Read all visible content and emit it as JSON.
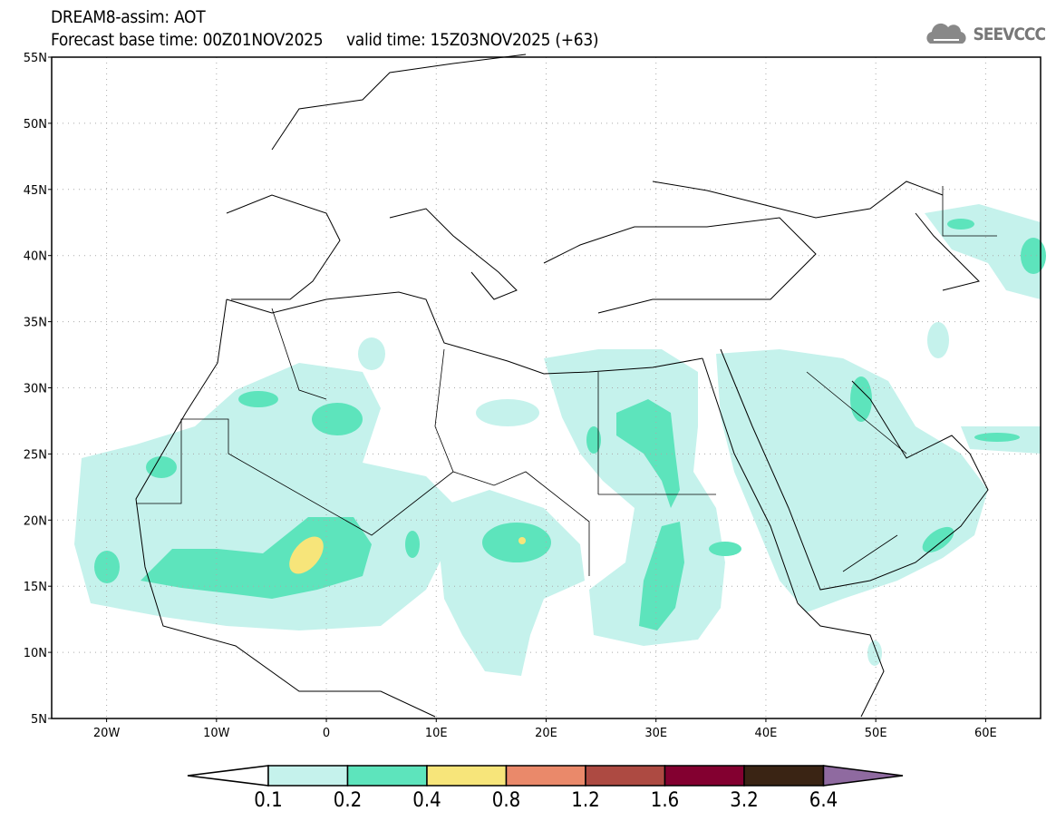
{
  "header": {
    "title": "DREAM8-assim: AOT",
    "base_time_label": "Forecast base time: 00Z01NOV2025",
    "valid_time_label": "valid time: 15Z03NOV2025 (+63)",
    "logo_text": "SEEVCCC"
  },
  "map": {
    "lon_range": [
      -25,
      65
    ],
    "lat_range": [
      5,
      55
    ],
    "lat_labels": [
      "55N",
      "50N",
      "45N",
      "40N",
      "35N",
      "30N",
      "25N",
      "20N",
      "15N",
      "10N",
      "5N"
    ],
    "lon_labels": [
      "20W",
      "10W",
      "0",
      "10E",
      "20E",
      "30E",
      "40E",
      "50E",
      "60E"
    ]
  },
  "colorbar": {
    "labels": [
      "0.1",
      "0.2",
      "0.4",
      "0.8",
      "1.2",
      "1.6",
      "3.2",
      "6.4"
    ],
    "colors": [
      "#ffffff",
      "#c5f2ec",
      "#5de4bc",
      "#f7e57a",
      "#ea896a",
      "#ad4a42",
      "#830030",
      "#3a2414",
      "#8f6aa0"
    ]
  }
}
